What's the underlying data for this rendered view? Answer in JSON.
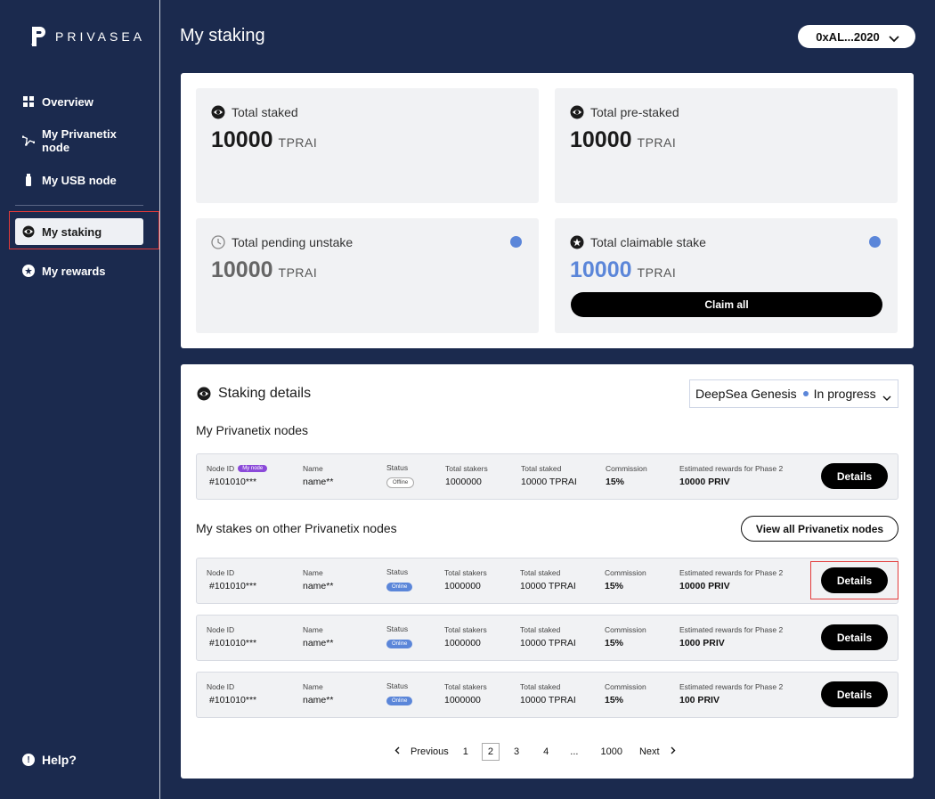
{
  "brand": {
    "name": "PRIVASEA"
  },
  "sidebar": {
    "items": [
      {
        "label": "Overview",
        "icon": "grid-icon"
      },
      {
        "label": "My Privanetix node",
        "icon": "network-icon"
      },
      {
        "label": "My USB node",
        "icon": "usb-icon"
      },
      {
        "label": "My staking",
        "icon": "eye-icon",
        "active": true
      },
      {
        "label": "My rewards",
        "icon": "star-icon"
      }
    ],
    "help": "Help?"
  },
  "header": {
    "title": "My staking",
    "wallet": "0xAL...2020"
  },
  "summary": {
    "cards": [
      {
        "title": "Total staked",
        "value": "10000",
        "unit": "TPRAI"
      },
      {
        "title": "Total pre-staked",
        "value": "10000",
        "unit": "TPRAI"
      },
      {
        "title": "Total pending unstake",
        "value": "10000",
        "unit": "TPRAI"
      },
      {
        "title": "Total claimable stake",
        "value": "10000",
        "unit": "TPRAI"
      }
    ],
    "claim_label": "Claim all"
  },
  "details": {
    "title": "Staking details",
    "phase": {
      "name": "DeepSea Genesis",
      "status": "In progress"
    },
    "my_nodes_title": "My Privanetix nodes",
    "other_title": "My stakes on other Privanetix nodes",
    "view_all": "View all Privanetix nodes",
    "labels": {
      "node_id": "Node ID",
      "my_node": "My node",
      "name": "Name",
      "status": "Status",
      "stakers": "Total stakers",
      "staked": "Total staked",
      "commission": "Commission",
      "rewards": "Estimated rewards for Phase 2",
      "details_btn": "Details"
    },
    "my_nodes": [
      {
        "id": "#101010***",
        "name": "name**",
        "status": "Offline",
        "stakers": "1000000",
        "staked": "10000 TPRAI",
        "commission": "15%",
        "rewards": "10000 PRIV"
      }
    ],
    "other_nodes": [
      {
        "id": "#101010***",
        "name": "name**",
        "status": "Online",
        "stakers": "1000000",
        "staked": "10000 TPRAI",
        "commission": "15%",
        "rewards": "10000 PRIV"
      },
      {
        "id": "#101010***",
        "name": "name**",
        "status": "Online",
        "stakers": "1000000",
        "staked": "10000 TPRAI",
        "commission": "15%",
        "rewards": "1000 PRIV"
      },
      {
        "id": "#101010***",
        "name": "name**",
        "status": "Online",
        "stakers": "1000000",
        "staked": "10000 TPRAI",
        "commission": "15%",
        "rewards": "100 PRIV"
      }
    ]
  },
  "pagination": {
    "previous": "Previous",
    "next": "Next",
    "pages": [
      "1",
      "2",
      "3",
      "4",
      "...",
      "1000"
    ],
    "current": "2"
  },
  "colors": {
    "sidebar": "#1b2a4e",
    "accent": "#5b86d9",
    "highlight": "#e23a3a"
  }
}
